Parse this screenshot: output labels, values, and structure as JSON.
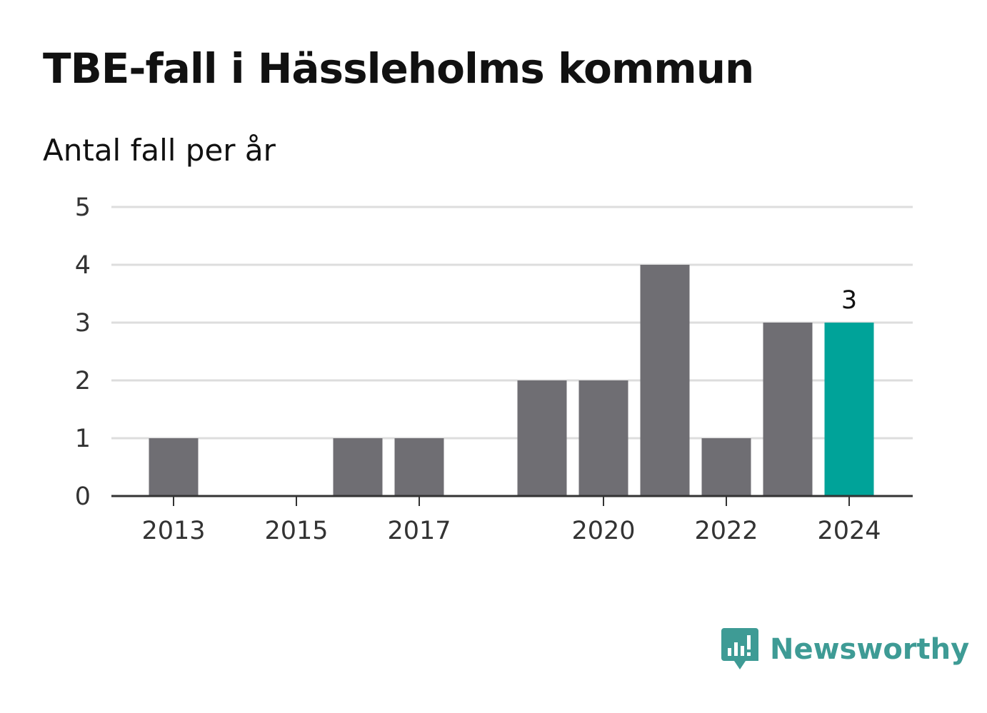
{
  "header": {
    "title": "TBE-fall i Hässleholms kommun",
    "subtitle": "Antal fall per år"
  },
  "brand": {
    "name": "Newsworthy",
    "color": "#3e9b95",
    "icon": "newsworthy-logo-icon"
  },
  "colors": {
    "bar": "#6f6e73",
    "highlight": "#00a399",
    "grid": "#dddddd",
    "axis": "#333333"
  },
  "chart_data": {
    "type": "bar",
    "title": "TBE-fall i Hässleholms kommun",
    "subtitle": "Antal fall per år",
    "xlabel": "",
    "ylabel": "",
    "categories": [
      "2013",
      "2014",
      "2015",
      "2016",
      "2017",
      "2018",
      "2019",
      "2020",
      "2021",
      "2022",
      "2023",
      "2024"
    ],
    "values": [
      1,
      0,
      0,
      1,
      1,
      0,
      2,
      2,
      4,
      1,
      3,
      3
    ],
    "highlight_index": 11,
    "data_labels": [
      {
        "index": 11,
        "text": "3"
      }
    ],
    "x_tick_labels": [
      "2013",
      "2015",
      "2017",
      "2020",
      "2022",
      "2024"
    ],
    "yticks": [
      0,
      1,
      2,
      3,
      4,
      5
    ],
    "ylim": [
      0,
      5
    ],
    "grid": true,
    "legend": "none"
  }
}
